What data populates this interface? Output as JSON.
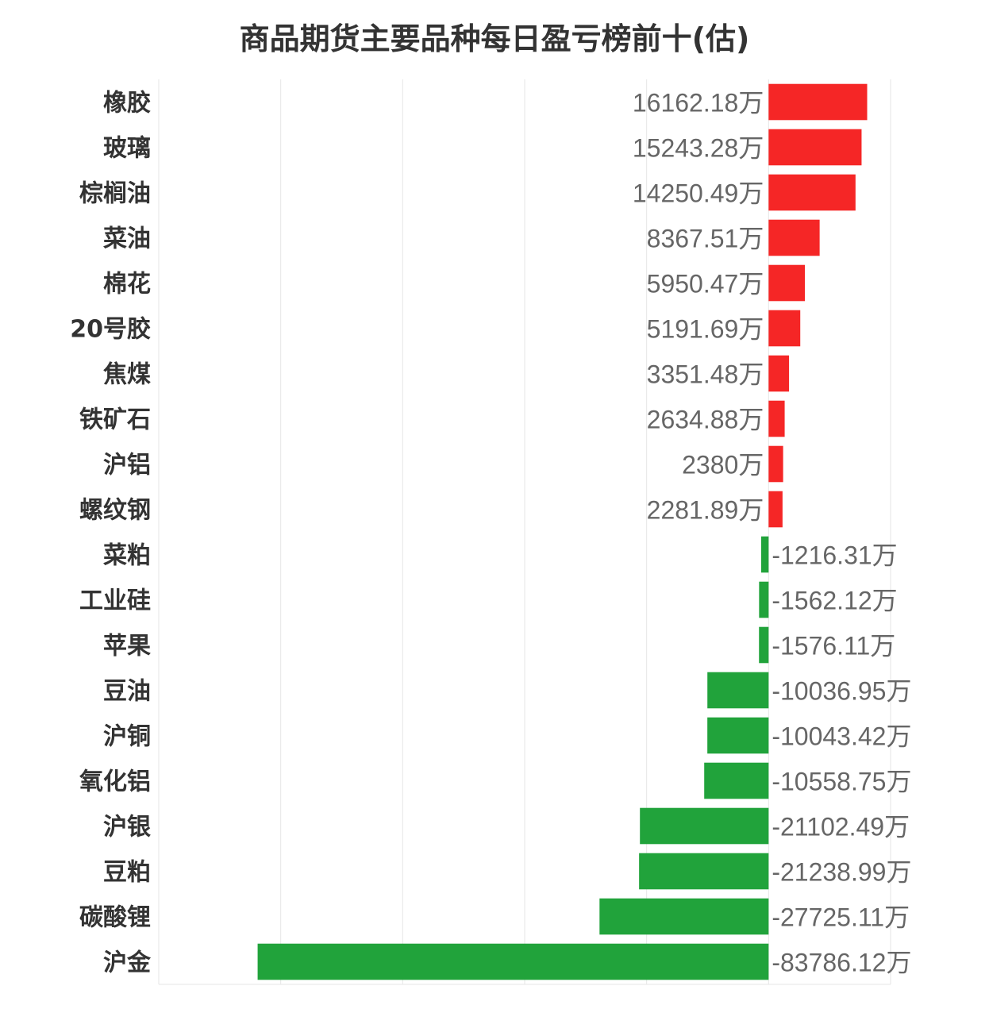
{
  "chart_data": {
    "type": "bar",
    "orientation": "horizontal",
    "title": "商品期货主要品种每日盈亏榜前十(估)",
    "unit": "万",
    "categories": [
      "橡胶",
      "玻璃",
      "棕榈油",
      "菜油",
      "棉花",
      "20号胶",
      "焦煤",
      "铁矿石",
      "沪铝",
      "螺纹钢",
      "菜粕",
      "工业硅",
      "苹果",
      "豆油",
      "沪铜",
      "氧化铝",
      "沪银",
      "豆粕",
      "碳酸锂",
      "沪金"
    ],
    "values": [
      16162.18,
      15243.28,
      14250.49,
      8367.51,
      5950.47,
      5191.69,
      3351.48,
      2634.88,
      2380,
      2281.89,
      -1216.31,
      -1562.12,
      -1576.11,
      -10036.95,
      -10043.42,
      -10558.75,
      -21102.49,
      -21238.99,
      -27725.11,
      -83786.12
    ],
    "value_labels": [
      "16162.18万",
      "15243.28万",
      "14250.49万",
      "8367.51万",
      "5950.47万",
      "5191.69万",
      "3351.48万",
      "2634.88万",
      "2380万",
      "2281.89万",
      "-1216.31万",
      "-1562.12万",
      "-1576.11万",
      "-10036.95万",
      "-10043.42万",
      "-10558.75万",
      "-21102.49万",
      "-21238.99万",
      "-27725.11万",
      "-83786.12万"
    ],
    "xlim": [
      -100000,
      20000
    ],
    "grid": true,
    "colors": {
      "positive": "#f52626",
      "negative": "#21a33b",
      "grid": "#e6e6e6"
    }
  }
}
